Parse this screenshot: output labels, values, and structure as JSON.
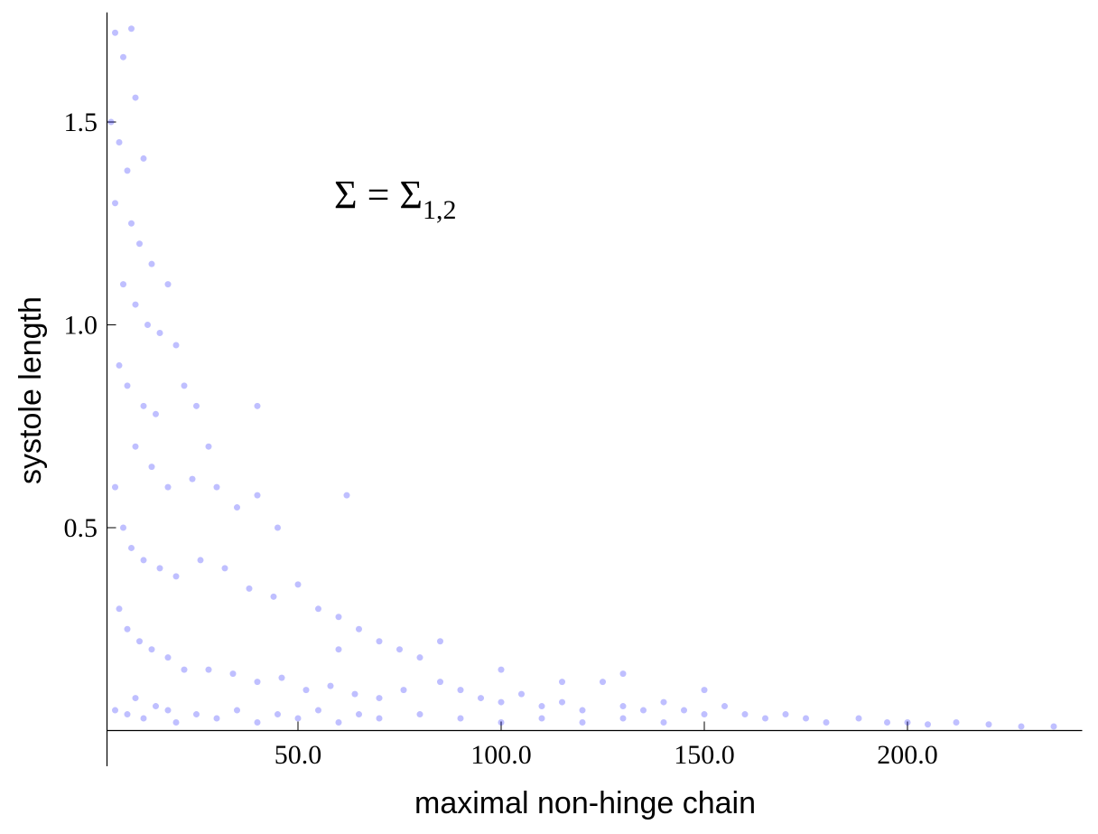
{
  "chart_data": {
    "type": "scatter",
    "xlabel": "maximal non-hinge chain",
    "ylabel": "systole length",
    "annotation": {
      "text": "Σ = Σ",
      "subscript": "1,2"
    },
    "xlim": [
      3,
      243
    ],
    "ylim": [
      0,
      1.77
    ],
    "xticks": [
      {
        "value": 50,
        "label": "50.0"
      },
      {
        "value": 100,
        "label": "100.0"
      },
      {
        "value": 150,
        "label": "150.0"
      },
      {
        "value": 200,
        "label": "200.0"
      }
    ],
    "yticks": [
      0.5,
      {
        "value": 1,
        "label": "1.0"
      },
      1.5
    ],
    "color": "#0000ff",
    "x": [
      5,
      7,
      9,
      10,
      4,
      6,
      8,
      12,
      5,
      9,
      11,
      14,
      7,
      10,
      13,
      16,
      18,
      20,
      6,
      8,
      12,
      15,
      22,
      25,
      28,
      10,
      14,
      18,
      24,
      30,
      35,
      40,
      45,
      5,
      7,
      9,
      12,
      16,
      20,
      26,
      32,
      38,
      44,
      50,
      55,
      60,
      65,
      70,
      75,
      80,
      6,
      8,
      11,
      14,
      18,
      22,
      28,
      34,
      40,
      46,
      52,
      58,
      64,
      70,
      76,
      85,
      90,
      95,
      100,
      105,
      110,
      115,
      120,
      125,
      130,
      135,
      140,
      145,
      150,
      155,
      160,
      165,
      170,
      175,
      180,
      188,
      195,
      200,
      205,
      212,
      220,
      228,
      236,
      5,
      8,
      10,
      12,
      15,
      18,
      20,
      25,
      30,
      35,
      40,
      45,
      50,
      55,
      60,
      65,
      70,
      80,
      90,
      100,
      110,
      120,
      130,
      140,
      60,
      85,
      100,
      115,
      130,
      150,
      62,
      40
    ],
    "y": [
      1.72,
      1.66,
      1.73,
      1.56,
      1.5,
      1.45,
      1.38,
      1.41,
      1.3,
      1.25,
      1.2,
      1.15,
      1.1,
      1.05,
      1.0,
      0.98,
      1.1,
      0.95,
      0.9,
      0.85,
      0.8,
      0.78,
      0.85,
      0.8,
      0.7,
      0.7,
      0.65,
      0.6,
      0.62,
      0.6,
      0.55,
      0.58,
      0.5,
      0.6,
      0.5,
      0.45,
      0.42,
      0.4,
      0.38,
      0.42,
      0.4,
      0.35,
      0.33,
      0.36,
      0.3,
      0.28,
      0.25,
      0.22,
      0.2,
      0.18,
      0.3,
      0.25,
      0.22,
      0.2,
      0.18,
      0.15,
      0.15,
      0.14,
      0.12,
      0.13,
      0.1,
      0.11,
      0.09,
      0.08,
      0.1,
      0.12,
      0.1,
      0.08,
      0.07,
      0.09,
      0.06,
      0.07,
      0.05,
      0.12,
      0.06,
      0.05,
      0.07,
      0.05,
      0.04,
      0.06,
      0.04,
      0.03,
      0.04,
      0.03,
      0.02,
      0.03,
      0.02,
      0.02,
      0.015,
      0.02,
      0.015,
      0.01,
      0.01,
      0.05,
      0.04,
      0.08,
      0.03,
      0.06,
      0.05,
      0.02,
      0.04,
      0.03,
      0.05,
      0.02,
      0.04,
      0.03,
      0.05,
      0.02,
      0.04,
      0.03,
      0.04,
      0.03,
      0.02,
      0.03,
      0.02,
      0.03,
      0.02,
      0.2,
      0.22,
      0.15,
      0.12,
      0.14,
      0.1,
      0.58,
      0.8
    ]
  }
}
